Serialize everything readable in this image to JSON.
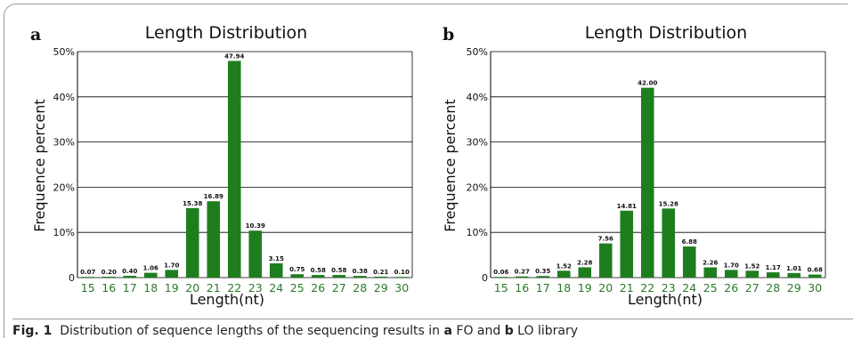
{
  "colors": {
    "bar": "#1e7e1e",
    "xtick": "#2a7a2a",
    "grid": "#000000"
  },
  "chart_data": [
    {
      "panel": "a",
      "type": "bar",
      "title": "Length Distribution",
      "xlabel": "Length(nt)",
      "ylabel": "Frequence percent",
      "ylim": [
        0,
        50
      ],
      "yticks": [
        "0",
        "10%",
        "20%",
        "30%",
        "40%",
        "50%"
      ],
      "grid": true,
      "categories": [
        "15",
        "16",
        "17",
        "18",
        "19",
        "20",
        "21",
        "22",
        "23",
        "24",
        "25",
        "26",
        "27",
        "28",
        "29",
        "30"
      ],
      "values": [
        0.07,
        0.2,
        0.4,
        1.06,
        1.7,
        15.38,
        16.89,
        47.94,
        10.39,
        3.15,
        0.75,
        0.58,
        0.58,
        0.38,
        0.21,
        0.1
      ],
      "value_labels": [
        "0.07",
        "0.20",
        "0.40",
        "1.06",
        "1.70",
        "15.38",
        "16.89",
        "47.94",
        "10.39",
        "3.15",
        "0.75",
        "0.58",
        "0.58",
        "0.38",
        "0.21",
        "0.10"
      ]
    },
    {
      "panel": "b",
      "type": "bar",
      "title": "Length Distribution",
      "xlabel": "Length(nt)",
      "ylabel": "Frequence percent",
      "ylim": [
        0,
        50
      ],
      "yticks": [
        "0",
        "10%",
        "20%",
        "30%",
        "40%",
        "50%"
      ],
      "grid": true,
      "categories": [
        "15",
        "16",
        "17",
        "18",
        "19",
        "20",
        "21",
        "22",
        "23",
        "24",
        "25",
        "26",
        "27",
        "28",
        "29",
        "30"
      ],
      "values": [
        0.06,
        0.27,
        0.35,
        1.52,
        2.28,
        7.56,
        14.81,
        42.0,
        15.28,
        6.88,
        2.26,
        1.7,
        1.52,
        1.17,
        1.01,
        0.68
      ],
      "value_labels": [
        "0.06",
        "0.27",
        "0.35",
        "1.52",
        "2.28",
        "7.56",
        "14.81",
        "42.00",
        "15.28",
        "6.88",
        "2.26",
        "1.70",
        "1.52",
        "1.17",
        "1.01",
        "0.68"
      ]
    }
  ],
  "caption": {
    "fig": "Fig. 1",
    "text_1": "Distribution of sequence lengths of the sequencing results in ",
    "a": "a",
    "text_2": " FO and ",
    "b": "b",
    "text_3": " LO library"
  }
}
